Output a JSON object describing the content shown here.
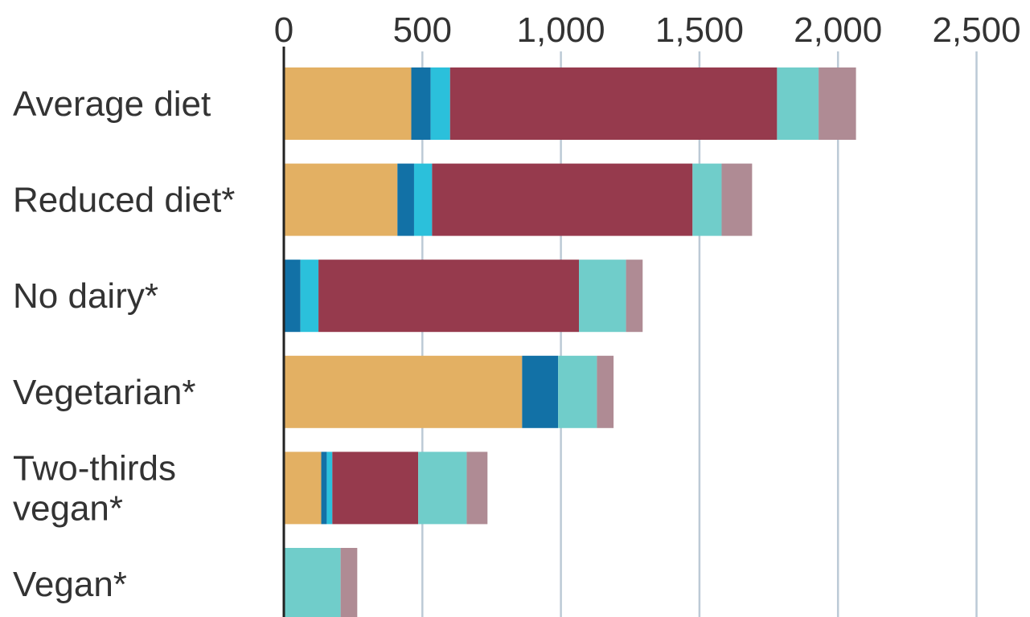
{
  "chart_data": {
    "type": "bar",
    "orientation": "horizontal",
    "stacked": true,
    "categories": [
      "Average diet",
      "Reduced diet*",
      "No dairy*",
      "Vegetarian*",
      "Two-thirds vegan*",
      "Vegan*"
    ],
    "category_lines": [
      [
        "Average diet"
      ],
      [
        "Reduced diet*"
      ],
      [
        "No dairy*"
      ],
      [
        "Vegetarian*"
      ],
      [
        "Two-thirds",
        "vegan*"
      ],
      [
        "Vegan*"
      ]
    ],
    "series": [
      {
        "color": "#E3B063",
        "values": [
          460,
          410,
          0,
          860,
          135,
          0
        ]
      },
      {
        "color": "#1271A6",
        "values": [
          70,
          60,
          60,
          130,
          20,
          0
        ]
      },
      {
        "color": "#2BC0DB",
        "values": [
          70,
          65,
          65,
          0,
          20,
          0
        ]
      },
      {
        "color": "#963A4D",
        "values": [
          1180,
          940,
          940,
          0,
          310,
          0
        ]
      },
      {
        "color": "#70CDCA",
        "values": [
          150,
          105,
          170,
          140,
          175,
          205
        ]
      },
      {
        "color": "#AF8B94",
        "values": [
          135,
          110,
          60,
          60,
          75,
          60
        ]
      }
    ],
    "xlim": [
      0,
      2500
    ],
    "xticks": [
      0,
      500,
      1000,
      1500,
      2000,
      2500
    ],
    "xtick_labels": [
      "0",
      "500",
      "1,000",
      "1,500",
      "2,000",
      "2,500"
    ],
    "xaxis_position": "top",
    "grid": true,
    "title": "",
    "xlabel": "",
    "ylabel": ""
  }
}
